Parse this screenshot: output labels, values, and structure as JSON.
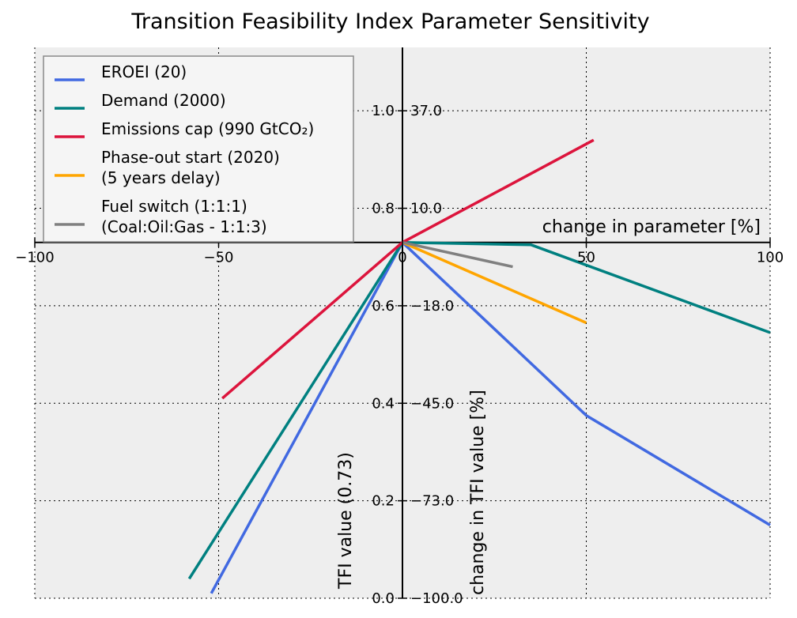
{
  "chart_data": {
    "type": "line",
    "title": "Transition Feasibility Index Parameter Sensitivity",
    "xlabel": "change in parameter [%]",
    "ylabel_left": "TFI value (0.73)",
    "ylabel_right": "change in TFI value [%]",
    "xlim": [
      -100,
      100
    ],
    "ylim": [
      0.0,
      1.13
    ],
    "x_ticks": [
      -100,
      -50,
      0,
      50,
      100
    ],
    "x_tick_labels": [
      "−100",
      "−50",
      "0",
      "50",
      "100"
    ],
    "y_ticks": [
      0.0,
      0.2,
      0.4,
      0.6,
      0.8,
      1.0
    ],
    "y_tick_labels": [
      "0.0",
      "0.2",
      "0.4",
      "0.6",
      "0.8",
      "1.0"
    ],
    "y2_tick_labels": [
      "−100.0",
      "−73.0",
      "−45.0",
      "−18.0",
      "10.0",
      "37.0"
    ],
    "grid": true,
    "legend_position": "top-left",
    "series": [
      {
        "name": "EROEI (20)",
        "color": "#4169e1",
        "x": [
          -52,
          0,
          50,
          100
        ],
        "y": [
          0.01,
          0.73,
          0.375,
          0.15
        ]
      },
      {
        "name": "Demand (2000)",
        "color": "#008080",
        "x": [
          -58,
          0,
          35,
          100
        ],
        "y": [
          0.04,
          0.73,
          0.725,
          0.545
        ]
      },
      {
        "name": "Emissions cap (990 GtCO₂)",
        "color": "#dc143c",
        "x": [
          -49,
          0,
          52
        ],
        "y": [
          0.41,
          0.73,
          0.94
        ]
      },
      {
        "name": "Phase-out start (2020)\n(5 years delay)",
        "color": "#ffa500",
        "x": [
          0,
          50
        ],
        "y": [
          0.73,
          0.565
        ]
      },
      {
        "name": "Fuel switch (1:1:1)\n(Coal:Oil:Gas - 1:1:3)",
        "color": "#808080",
        "x": [
          0,
          30
        ],
        "y": [
          0.73,
          0.68
        ]
      }
    ]
  }
}
